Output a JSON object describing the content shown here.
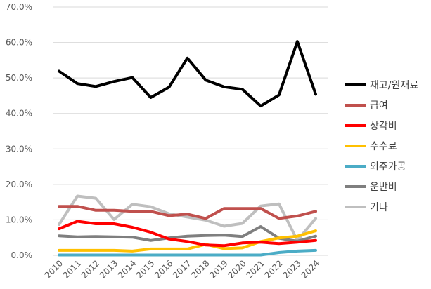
{
  "chart_data": {
    "type": "line",
    "title": "",
    "xlabel": "",
    "ylabel": "",
    "ylim": [
      0,
      0.7
    ],
    "y_ticks": [
      "0.0%",
      "10.0%",
      "20.0%",
      "30.0%",
      "40.0%",
      "50.0%",
      "60.0%",
      "70.0%"
    ],
    "y_tick_values": [
      0,
      0.1,
      0.2,
      0.3,
      0.4,
      0.5,
      0.6,
      0.7
    ],
    "grid": "horizontal",
    "legend_position": "right",
    "categories": [
      "2010",
      "2011",
      "2012",
      "2013",
      "2014",
      "2015",
      "2016",
      "2017",
      "2018",
      "2019",
      "2020",
      "2021",
      "2022",
      "2023",
      "2024"
    ],
    "series": [
      {
        "name": "재고/원재료",
        "color": "#000000",
        "values": [
          0.519,
          0.484,
          0.476,
          0.49,
          0.501,
          0.445,
          0.474,
          0.556,
          0.494,
          0.475,
          0.468,
          0.421,
          0.452,
          0.603,
          0.454
        ]
      },
      {
        "name": "급여",
        "color": "#c0504d",
        "values": [
          0.138,
          0.138,
          0.127,
          0.127,
          0.124,
          0.124,
          0.112,
          0.116,
          0.104,
          0.132,
          0.132,
          0.132,
          0.104,
          0.111,
          0.124
        ]
      },
      {
        "name": "상각비",
        "color": "#ff0000",
        "values": [
          0.075,
          0.096,
          0.089,
          0.089,
          0.079,
          0.065,
          0.046,
          0.039,
          0.029,
          0.027,
          0.035,
          0.037,
          0.033,
          0.037,
          0.042
        ]
      },
      {
        "name": "수수료",
        "color": "#ffc000",
        "values": [
          0.014,
          0.014,
          0.014,
          0.014,
          0.012,
          0.018,
          0.018,
          0.018,
          0.031,
          0.019,
          0.021,
          0.039,
          0.049,
          0.054,
          0.069
        ]
      },
      {
        "name": "외주가공",
        "color": "#4bacc6",
        "values": [
          0.001,
          0.001,
          0.001,
          0.001,
          0.001,
          0.001,
          0.001,
          0.001,
          0.001,
          0.001,
          0.001,
          0.001,
          0.008,
          0.012,
          0.014
        ]
      },
      {
        "name": "운반비",
        "color": "#7f7f7f",
        "values": [
          0.055,
          0.052,
          0.053,
          0.052,
          0.051,
          0.042,
          0.049,
          0.054,
          0.056,
          0.057,
          0.053,
          0.081,
          0.048,
          0.04,
          0.054
        ]
      },
      {
        "name": "기타",
        "color": "#bfbfbf",
        "values": [
          0.087,
          0.167,
          0.161,
          0.101,
          0.144,
          0.137,
          0.117,
          0.108,
          0.099,
          0.082,
          0.09,
          0.139,
          0.145,
          0.042,
          0.104
        ]
      }
    ]
  }
}
